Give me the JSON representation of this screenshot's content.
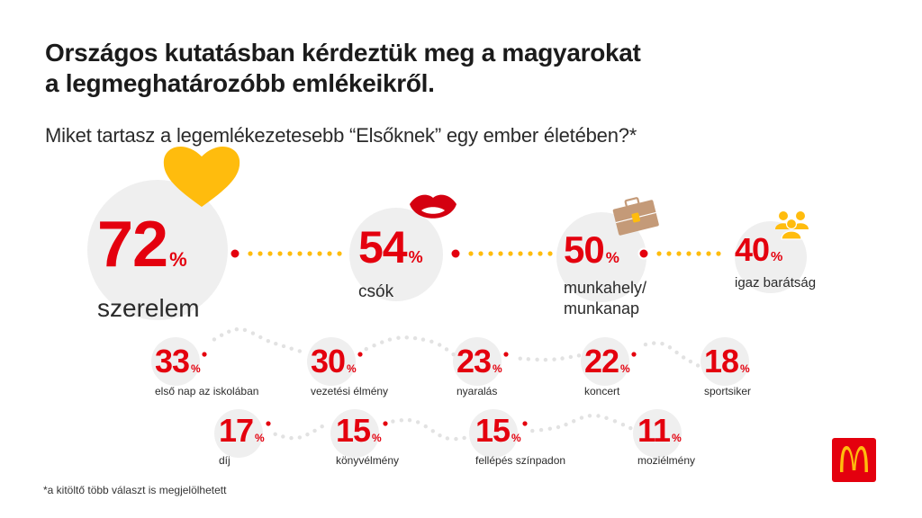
{
  "header": {
    "title_line1": "Országos kutatásban kérdeztük meg a magyarokat",
    "title_line2": "a legmeghatározóbb emlékeikről.",
    "subtitle": "Miket tartasz a legemlékezetesebb “Elsőknek” egy ember életében?*"
  },
  "footnote": "*a kitöltő több választ is megjelölhetett",
  "colors": {
    "accent_red": "#e4000e",
    "accent_yellow": "#ffbc0d",
    "circle_gray": "#efefef",
    "briefcase_brown": "#c49a78",
    "lips_red": "#d40010"
  },
  "logo": {
    "name": "mcdonalds-logo-icon"
  },
  "chart_data": {
    "type": "bar",
    "title": "Miket tartasz a legemlékezetesebb “Elsőknek” egy ember életében?*",
    "unit": "%",
    "categories": [
      "szerelem",
      "csók",
      "munkahely/ munkanap",
      "igaz barátság",
      "első nap az iskolában",
      "vezetési élmény",
      "nyaralás",
      "koncert",
      "sportsiker",
      "díj",
      "könyvélmény",
      "fellépés színpadon",
      "moziélmény"
    ],
    "values": [
      72,
      54,
      50,
      40,
      33,
      30,
      23,
      22,
      18,
      17,
      15,
      15,
      11
    ],
    "items": [
      {
        "value": 72,
        "display": "72",
        "label": "szerelem",
        "icon": "heart-icon"
      },
      {
        "value": 54,
        "display": "54",
        "label": "csók",
        "icon": "lips-icon"
      },
      {
        "value": 50,
        "display": "50",
        "label": "munkahely/",
        "label2": "munkanap",
        "icon": "briefcase-icon"
      },
      {
        "value": 40,
        "display": "40",
        "label": "igaz barátság",
        "icon": "people-group-icon"
      },
      {
        "value": 33,
        "display": "33",
        "label": "első nap az iskolában"
      },
      {
        "value": 30,
        "display": "30",
        "label": "vezetési élmény"
      },
      {
        "value": 23,
        "display": "23",
        "label": "nyaralás"
      },
      {
        "value": 22,
        "display": "22",
        "label": "koncert"
      },
      {
        "value": 18,
        "display": "18",
        "label": "sportsiker"
      },
      {
        "value": 17,
        "display": "17",
        "label": "díj"
      },
      {
        "value": 15,
        "display": "15",
        "label": "könyvélmény"
      },
      {
        "value": 15,
        "display": "15",
        "label": "fellépés színpadon"
      },
      {
        "value": 11,
        "display": "11",
        "label": "moziélmény"
      }
    ],
    "pct_symbol": "%"
  }
}
